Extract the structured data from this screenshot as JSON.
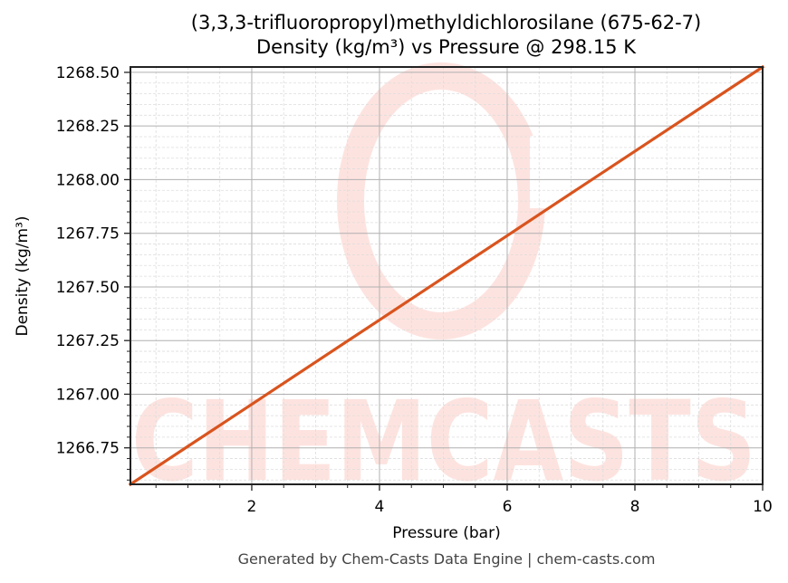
{
  "chart_title_line1": "(3,3,3-trifluoropropyl)methyldichlorosilane (675-62-7)",
  "chart_title_line2": "Density (kg/m³) vs Pressure @ 298.15 K",
  "footer": "Generated by Chem-Casts Data Engine | chem-casts.com",
  "watermark": "CHEMCASTS",
  "colors": {
    "line": "#d9541e",
    "watermark": "#fde3df",
    "grid_major": "#b0b0b0",
    "grid_minor": "#dddddd",
    "axes": "#222222",
    "footer_text": "#444444"
  },
  "chart_data": {
    "type": "line",
    "title": "(3,3,3-trifluoropropyl)methyldichlorosilane (675-62-7)\nDensity (kg/m³) vs Pressure @ 298.15 K",
    "xlabel": "Pressure (bar)",
    "ylabel": "Density (kg/m³)",
    "xlim": [
      0.1,
      10
    ],
    "ylim": [
      1266.58,
      1268.525
    ],
    "grid": true,
    "legend": null,
    "x_ticks": [
      "2",
      "4",
      "6",
      "8",
      "10"
    ],
    "y_ticks": [
      "1266.75",
      "1267.00",
      "1267.25",
      "1267.50",
      "1267.75",
      "1268.00",
      "1268.25",
      "1268.50"
    ],
    "series": [
      {
        "name": "Density",
        "color": "#d9541e",
        "x": [
          0.1,
          1,
          2,
          3,
          4,
          5,
          6,
          7,
          8,
          9,
          10
        ],
        "y": [
          1266.58,
          1266.757,
          1266.953,
          1267.15,
          1267.346,
          1267.543,
          1267.739,
          1267.936,
          1268.132,
          1268.329,
          1268.525
        ]
      }
    ]
  }
}
